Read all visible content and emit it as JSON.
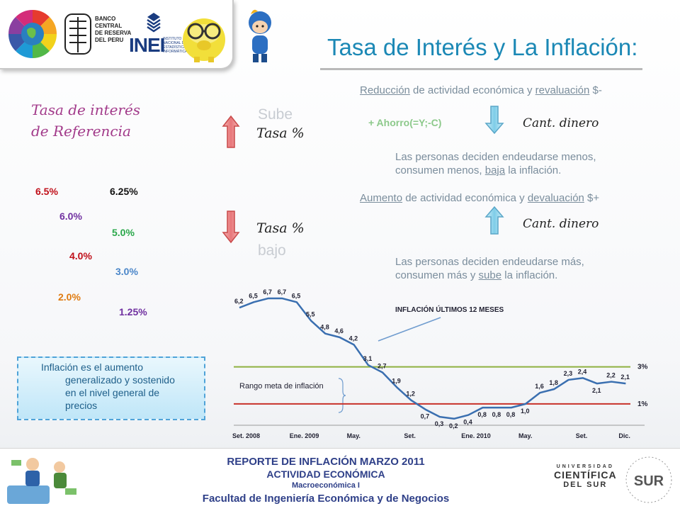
{
  "header": {
    "title": "Tasa de Interés y La Inflación:",
    "logos": {
      "bcrp_lines": [
        "BANCO",
        "CENTRAL",
        "DE RESERVA",
        "DEL PERU"
      ],
      "inei_main": "INEI",
      "inei_lines": [
        "INSTITUTO",
        "NACIONAL DE",
        "ESTADÍSTICA E",
        "INFORMÁTICA"
      ],
      "icons": [
        "globe-logo",
        "bcrp-emblem",
        "inei-emblem",
        "piggy-bank-icon",
        "cartoon-character-icon"
      ]
    }
  },
  "left": {
    "heading_line1": "Tasa de interés",
    "heading_line2": "de Referencia",
    "rates": [
      {
        "text": "6.5%",
        "color": "#c0101a"
      },
      {
        "text": "6.25%",
        "color": "#111111"
      },
      {
        "text": "6.0%",
        "color": "#7030a0"
      },
      {
        "text": "5.0%",
        "color": "#2aa84a"
      },
      {
        "text": "4.0%",
        "color": "#c0101a"
      },
      {
        "text": "3.0%",
        "color": "#4a86c8"
      },
      {
        "text": "2.0%",
        "color": "#e07b10"
      },
      {
        "text": "1.25%",
        "color": "#7030a0"
      }
    ]
  },
  "middle": {
    "sube": "Sube",
    "tasa_up": "Tasa %",
    "tasa_down": "Tasa %",
    "bajo": "bajo"
  },
  "right": {
    "line1_w1": "Reducción",
    "line1_mid": " de actividad económica y ",
    "line1_w2": "revaluación",
    "line1_end": " $-",
    "ahorro": "+ Ahorro(=Y;-C)",
    "cant_dinero_1": "Cant. dinero",
    "para1_a": "Las personas deciden endeudarse menos,",
    "para1_b1": "consumen menos, ",
    "para1_b_u": "baja",
    "para1_b2": " la inflación.",
    "line2_w1": "Aumento",
    "line2_mid": " de actividad económica y ",
    "line2_w2": "devaluación",
    "line2_end": " $+",
    "cant_dinero_2": "Cant. dinero",
    "para2_a": "Las personas deciden endeudarse más,",
    "para2_b1": "consumen más y ",
    "para2_b_u": "sube",
    "para2_b2": " la inflación."
  },
  "definition": {
    "line1": "Inflación es el aumento",
    "line2": "generalizado y sostenido",
    "line3": "en el nivel general de",
    "line4": "precios"
  },
  "chart_data": {
    "type": "line",
    "title": "INFLACIÓN ÚLTIMOS 12 MESES",
    "annotation": "Rango meta de inflación",
    "x_tick_labels": [
      "Set. 2008",
      "Ene. 2009",
      "May.",
      "Set.",
      "Ene. 2010",
      "May.",
      "Set.",
      "Dic."
    ],
    "x_tick_index": [
      0,
      4,
      8,
      12,
      16,
      20,
      24,
      27
    ],
    "values": [
      6.2,
      6.5,
      6.7,
      6.7,
      6.5,
      5.5,
      4.8,
      4.6,
      4.2,
      3.1,
      2.7,
      1.9,
      1.2,
      0.7,
      0.3,
      0.2,
      0.4,
      0.8,
      0.8,
      0.8,
      1.0,
      1.6,
      1.8,
      2.3,
      2.4,
      2.1,
      2.2,
      2.1
    ],
    "labels": [
      "6,2",
      "6,5",
      "6,7",
      "6,7",
      "6,5",
      "5,5",
      "4,8",
      "4,6",
      "4,2",
      "3,1",
      "2,7",
      "1,9",
      "1,2",
      "0,7",
      "0,3",
      "0,2",
      "0,4",
      "0,8",
      "0,8",
      "0,8",
      "1,0",
      "1,6",
      "1,8",
      "2,3",
      "2,4",
      "2,1",
      "2,2",
      "2,1"
    ],
    "upper_target": {
      "label": "3%",
      "value": 3,
      "color": "#8fb040"
    },
    "lower_target": {
      "label": "1%",
      "value": 1,
      "color": "#c8322a"
    },
    "line_color": "#3a6fb0",
    "ylim": [
      0,
      7.2
    ]
  },
  "footer": {
    "line1": "REPORTE DE INFLACIÓN MARZO 2011",
    "line2": "ACTIVIDAD ECONÓMICA",
    "line3": "Macroeconómica I",
    "line4": "Facultad de Ingeniería Económica y de Negocios",
    "uni_line1": "UNIVERSIDAD",
    "uni_line2": "CIENTÍFICA",
    "uni_line3": "DEL SUR",
    "sur_logo": "SUR"
  }
}
